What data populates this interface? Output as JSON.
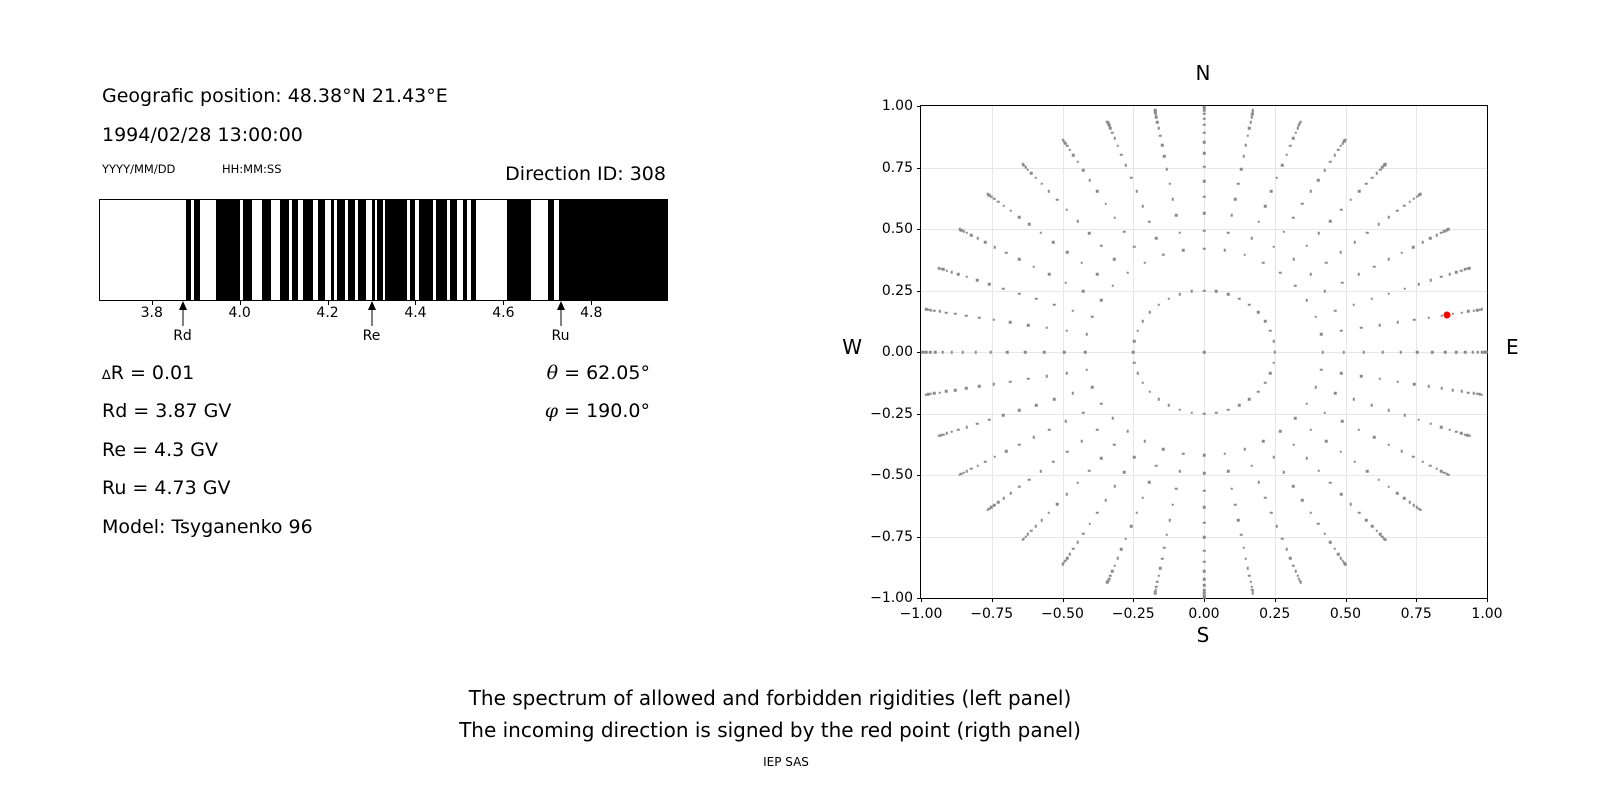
{
  "header": {
    "geo_position": "Geografic position: 48.38°N 21.43°E",
    "datetime": "1994/02/28 13:00:00",
    "date_format_hint": "YYYY/MM/DD",
    "time_format_hint": "HH:MM:SS"
  },
  "info": {
    "delta_symbol": "∆",
    "delta_rest": "R = 0.01",
    "rd": "Rd = 3.87 GV",
    "re": "Re = 4.3 GV",
    "ru": "Ru = 4.73 GV",
    "model": "Model: Tsyganenko 96",
    "theta_symbol": "θ",
    "theta_rest": " = 62.05°",
    "phi_symbol": "φ",
    "phi_rest": " = 190.0°"
  },
  "caption": {
    "line1": "The spectrum of allowed and forbidden rigidities (left panel)",
    "line2": "The incoming direction is signed by the red point (rigth panel)",
    "credit": "IEP SAS"
  },
  "chart_data": [
    {
      "type": "bar",
      "title": "Direction ID: 308",
      "xlabel": "",
      "ylabel": "",
      "xlim": [
        3.68,
        4.97
      ],
      "xticks": [
        3.8,
        4.0,
        4.2,
        4.4,
        4.6,
        4.8
      ],
      "xtick_labels": [
        "3.8",
        "4.0",
        "4.2",
        "4.4",
        "4.6",
        "4.8"
      ],
      "bar_color": "#000000",
      "background": "#ffffff",
      "filled_bands_gv": [
        [
          3.876,
          3.887
        ],
        [
          3.893,
          3.908
        ],
        [
          3.945,
          3.998
        ],
        [
          4.005,
          4.025
        ],
        [
          4.048,
          4.07
        ],
        [
          4.09,
          4.111
        ],
        [
          4.117,
          4.13
        ],
        [
          4.141,
          4.164
        ],
        [
          4.177,
          4.192
        ],
        [
          4.205,
          4.213
        ],
        [
          4.219,
          4.238
        ],
        [
          4.245,
          4.26
        ],
        [
          4.268,
          4.285
        ],
        [
          4.298,
          4.305
        ],
        [
          4.31,
          4.323
        ],
        [
          4.329,
          4.378
        ],
        [
          4.386,
          4.397
        ],
        [
          4.406,
          4.438
        ],
        [
          4.445,
          4.47
        ],
        [
          4.477,
          4.492
        ],
        [
          4.506,
          4.515
        ],
        [
          4.523,
          4.535
        ],
        [
          4.605,
          4.66
        ],
        [
          4.7,
          4.712
        ],
        [
          4.724,
          4.97
        ]
      ],
      "markers": [
        {
          "label": "Rd",
          "value_gv": 3.87
        },
        {
          "label": "Re",
          "value_gv": 4.3
        },
        {
          "label": "Ru",
          "value_gv": 4.73
        }
      ]
    },
    {
      "type": "scatter",
      "compass": {
        "top": "N",
        "bottom": "S",
        "left": "W",
        "right": "E"
      },
      "xlim": [
        -1.0,
        1.0
      ],
      "ylim": [
        -1.0,
        1.0
      ],
      "xticks": [
        -1.0,
        -0.75,
        -0.5,
        -0.25,
        0.0,
        0.25,
        0.5,
        0.75,
        1.0
      ],
      "xtick_labels": [
        "−1.00",
        "−0.75",
        "−0.50",
        "−0.25",
        "0.00",
        "0.25",
        "0.50",
        "0.75",
        "1.00"
      ],
      "yticks": [
        1.0,
        0.75,
        0.5,
        0.25,
        0.0,
        -0.25,
        -0.5,
        -0.75,
        -1.0
      ],
      "ytick_labels": [
        "1.00",
        "0.75",
        "0.50",
        "0.25",
        "0.00",
        "−0.25",
        "−0.50",
        "−0.75",
        "−1.00"
      ],
      "grid": true,
      "grid_color": "#e7e7e7",
      "dot_color": "#8a8a8a",
      "spokes": {
        "azimuth_start_deg": 0,
        "azimuth_step_deg": 10,
        "azimuth_count": 36,
        "radii": [
          0.25,
          0.42,
          0.493,
          0.564,
          0.631,
          0.695,
          0.754,
          0.807,
          0.853,
          0.892,
          0.924,
          0.949,
          0.968,
          0.981,
          0.99,
          0.997
        ]
      },
      "center_dot": {
        "x": 0.0,
        "y": 0.0
      },
      "red_point": {
        "x": 0.86,
        "y": 0.15,
        "color": "#ff0000"
      }
    }
  ]
}
